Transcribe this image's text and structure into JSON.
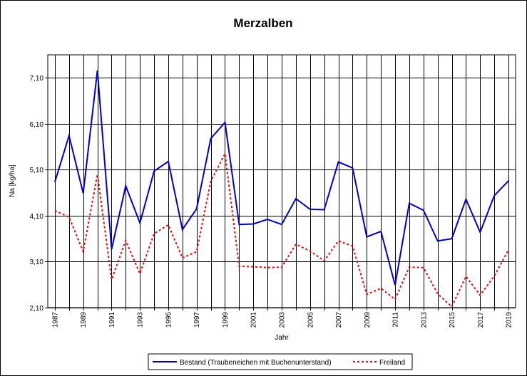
{
  "chart_data": {
    "type": "line",
    "title": "Merzalben",
    "xlabel": "Jahr",
    "ylabel": "Na [kg/ha]",
    "x": [
      1987,
      1988,
      1989,
      1990,
      1991,
      1992,
      1993,
      1994,
      1995,
      1996,
      1997,
      1998,
      1999,
      2000,
      2001,
      2002,
      2003,
      2004,
      2005,
      2006,
      2007,
      2008,
      2009,
      2010,
      2011,
      2012,
      2013,
      2014,
      2015,
      2016,
      2017,
      2018,
      2019
    ],
    "x_tick_labels": [
      "1987",
      "1989",
      "1991",
      "1993",
      "1995",
      "1997",
      "1999",
      "2001",
      "2003",
      "2005",
      "2007",
      "2009",
      "2011",
      "2013",
      "2015",
      "2017",
      "2019"
    ],
    "ylim": [
      2.1,
      7.6
    ],
    "y_ticks": [
      2.1,
      3.1,
      4.1,
      5.1,
      6.1,
      7.1
    ],
    "y_tick_labels": [
      "2,10",
      "3,10",
      "4,10",
      "5,10",
      "6,10",
      "7,10"
    ],
    "grid": "vertical and horizontal",
    "legend_position": "bottom",
    "series": [
      {
        "name": "Bestand (Traubeneichen mit Buchenunterstand)",
        "color": "#0000CC",
        "style": "solid",
        "values": [
          4.83,
          5.84,
          4.59,
          7.26,
          3.37,
          4.75,
          3.94,
          5.07,
          5.28,
          3.8,
          4.25,
          5.78,
          6.13,
          3.91,
          3.92,
          4.02,
          3.91,
          4.47,
          4.24,
          4.23,
          5.27,
          5.14,
          3.64,
          3.76,
          2.59,
          4.37,
          4.22,
          3.55,
          3.6,
          4.46,
          3.74,
          4.54,
          4.86
        ]
      },
      {
        "name": "Freiland",
        "color": "#FF0000",
        "style": "dotted",
        "values": [
          4.21,
          4.07,
          3.32,
          5.0,
          2.71,
          3.56,
          2.84,
          3.71,
          3.9,
          3.18,
          3.32,
          4.85,
          5.45,
          3.0,
          2.99,
          2.97,
          2.98,
          3.48,
          3.33,
          3.12,
          3.55,
          3.44,
          2.39,
          2.52,
          2.28,
          2.98,
          2.97,
          2.4,
          2.12,
          2.78,
          2.37,
          2.79,
          3.36
        ]
      }
    ]
  }
}
